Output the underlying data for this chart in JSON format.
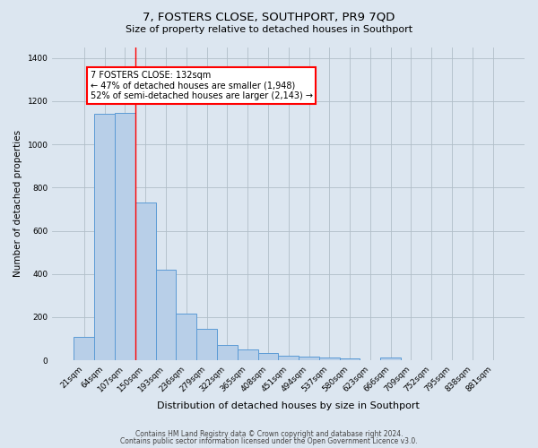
{
  "title": "7, FOSTERS CLOSE, SOUTHPORT, PR9 7QD",
  "subtitle": "Size of property relative to detached houses in Southport",
  "xlabel": "Distribution of detached houses by size in Southport",
  "ylabel": "Number of detached properties",
  "categories": [
    "21sqm",
    "64sqm",
    "107sqm",
    "150sqm",
    "193sqm",
    "236sqm",
    "279sqm",
    "322sqm",
    "365sqm",
    "408sqm",
    "451sqm",
    "494sqm",
    "537sqm",
    "580sqm",
    "623sqm",
    "666sqm",
    "709sqm",
    "752sqm",
    "795sqm",
    "838sqm",
    "881sqm"
  ],
  "values": [
    110,
    1140,
    1145,
    730,
    420,
    215,
    148,
    72,
    52,
    35,
    22,
    17,
    14,
    10,
    2,
    12,
    0,
    0,
    0,
    0,
    0
  ],
  "bar_color": "#b8cfe8",
  "bar_edge_color": "#5b9bd5",
  "red_line_x": 2.5,
  "annotation_text": "7 FOSTERS CLOSE: 132sqm\n← 47% of detached houses are smaller (1,948)\n52% of semi-detached houses are larger (2,143) →",
  "annotation_box_color": "white",
  "annotation_box_edge": "red",
  "footer_line1": "Contains HM Land Registry data © Crown copyright and database right 2024.",
  "footer_line2": "Contains public sector information licensed under the Open Government Licence v3.0.",
  "background_color": "#dce6f0",
  "plot_background": "#dce6f0",
  "ylim": [
    0,
    1450
  ],
  "grid_color": "#b0bec8",
  "title_fontsize": 9.5,
  "subtitle_fontsize": 8,
  "ylabel_fontsize": 7.5,
  "xlabel_fontsize": 8,
  "tick_fontsize": 6.5,
  "footer_fontsize": 5.5
}
